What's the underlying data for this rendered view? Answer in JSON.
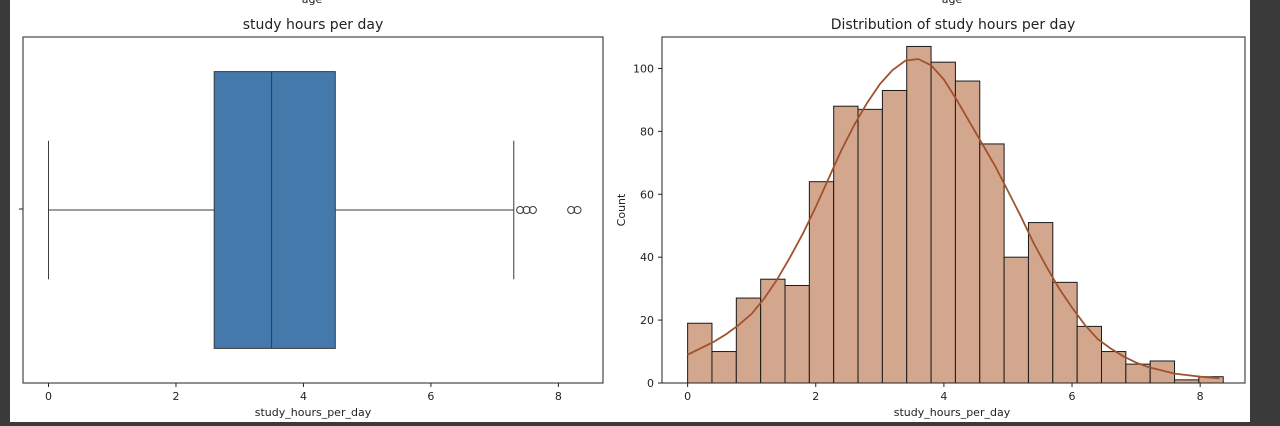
{
  "colors": {
    "box_fill": "#4379AB",
    "box_edge": "#3b3b3b",
    "hist_fill": "#D3A68E",
    "hist_edge": "#1a1a1a",
    "kde_line": "#A0522D",
    "page_background": "#3a3a3a"
  },
  "clipped_labels": {
    "left": "age",
    "right": "age"
  },
  "chart_data": [
    {
      "type": "box",
      "title": "study hours per day",
      "xlabel": "study_hours_per_day",
      "ylabel": "",
      "xlim": [
        -0.4,
        8.7
      ],
      "x_ticks": [
        0,
        2,
        4,
        6,
        8
      ],
      "box": {
        "whisker_low": 0,
        "q1": 2.6,
        "median": 3.5,
        "q3": 4.5,
        "whisker_high": 7.3
      },
      "outliers": [
        7.4,
        7.5,
        7.6,
        8.2,
        8.3
      ],
      "grid": false
    },
    {
      "type": "bar",
      "title": "Distribution of study hours per day",
      "xlabel": "study_hours_per_day",
      "ylabel": "Count",
      "xlim": [
        -0.4,
        8.7
      ],
      "ylim": [
        0,
        110
      ],
      "x_ticks": [
        0,
        2,
        4,
        6,
        8
      ],
      "y_ticks": [
        0,
        20,
        40,
        60,
        80,
        100
      ],
      "bin_start": 0.0,
      "bin_width": 0.38,
      "counts": [
        19,
        10,
        27,
        33,
        31,
        64,
        88,
        87,
        93,
        107,
        102,
        96,
        76,
        40,
        51,
        32,
        18,
        10,
        6,
        7,
        1,
        2
      ],
      "kde": {
        "x": [
          0,
          0.2,
          0.4,
          0.6,
          0.8,
          1.0,
          1.2,
          1.4,
          1.6,
          1.8,
          2.0,
          2.2,
          2.4,
          2.6,
          2.8,
          3.0,
          3.2,
          3.4,
          3.6,
          3.8,
          4.0,
          4.2,
          4.4,
          4.6,
          4.8,
          5.0,
          5.2,
          5.4,
          5.6,
          5.8,
          6.0,
          6.2,
          6.4,
          6.6,
          6.8,
          7.0,
          7.2,
          7.4,
          7.6,
          7.8,
          8.0,
          8.3
        ],
        "y": [
          9,
          11,
          13,
          15.5,
          18.5,
          22,
          27,
          33,
          40,
          47.5,
          56,
          65,
          74,
          82,
          89,
          95,
          99.5,
          102.5,
          103,
          101,
          96.5,
          90,
          83,
          76,
          69,
          61,
          53,
          44.5,
          37,
          30,
          24,
          18.5,
          14,
          11,
          8.5,
          6.5,
          5,
          4,
          3,
          2.5,
          2,
          1.5
        ]
      },
      "grid": false
    }
  ]
}
